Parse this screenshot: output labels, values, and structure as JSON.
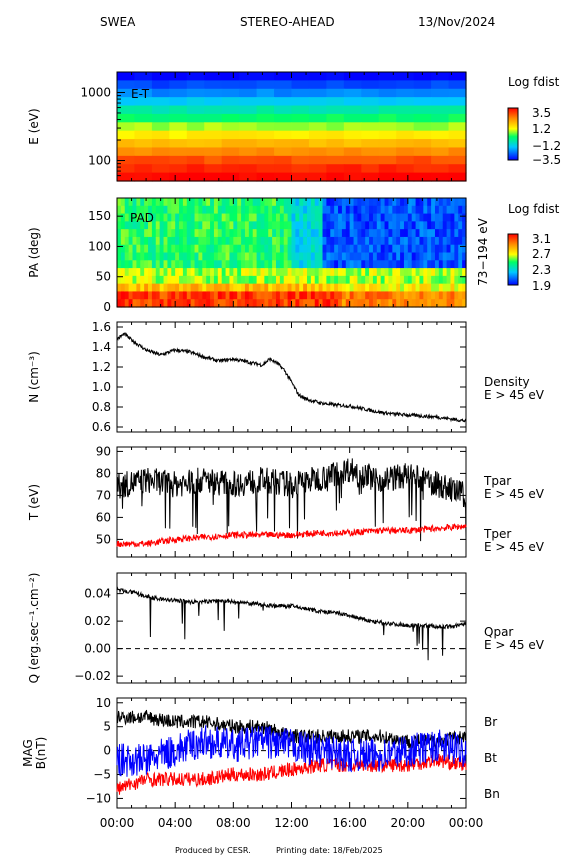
{
  "header": {
    "instrument": "SWEA",
    "spacecraft": "STEREO-AHEAD",
    "date": "13/Nov/2024"
  },
  "footer": {
    "produced": "Produced by CESR.",
    "printing": "Printing date: 18/Feb/2025"
  },
  "colors": {
    "black": "#000000",
    "red": "#ff0000",
    "blue": "#0000ff"
  },
  "chart_data": [
    {
      "type": "heatmap",
      "panel": "et",
      "tag": "E-T",
      "ylabel": "E (eV)",
      "yscale": "log",
      "ylim": [
        50,
        2000
      ],
      "yticks": [
        "1000",
        "100"
      ],
      "colorbar_title": "Log fdist",
      "colorbar_ticks": [
        "3.5",
        "1.2",
        "−1.2",
        "−3.5"
      ],
      "colorbar_range": [
        -3.5,
        3.5
      ],
      "energy_bins": [
        1900,
        1400,
        1050,
        780,
        580,
        430,
        320,
        240,
        180,
        135,
        100,
        75,
        57
      ],
      "log_fdist": [
        -3.5,
        -2.9,
        -2.3,
        -1.7,
        -1.0,
        -0.4,
        0.3,
        0.9,
        1.5,
        2.1,
        2.7,
        3.1,
        3.5
      ]
    },
    {
      "type": "heatmap",
      "panel": "pad",
      "tag": "PAD",
      "ylabel": "PA (deg)",
      "ylim": [
        0,
        180
      ],
      "yticks": [
        "150",
        "100",
        "50",
        "0"
      ],
      "right_label": "73−194 eV",
      "colorbar_title": "Log fdist",
      "colorbar_ticks": [
        "3.1",
        "2.7",
        "2.3",
        "1.9"
      ],
      "colorbar_range": [
        1.9,
        3.1
      ],
      "note": "field-aligned (0-40 deg) enhancement persisting all day; 100-180 deg band drops after ~12:00"
    },
    {
      "type": "line",
      "panel": "density",
      "ylabel": "N (cm⁻³)",
      "ylim": [
        0.55,
        1.65
      ],
      "yticks": [
        "1.6",
        "1.4",
        "1.2",
        "1.0",
        "0.8",
        "0.6"
      ],
      "series": [
        {
          "name": "Density",
          "sub": "E > 45 eV",
          "color": "#000000",
          "x": [
            0,
            0.5,
            1,
            2,
            3,
            4,
            5,
            6,
            7,
            8,
            9,
            10,
            10.5,
            11,
            11.5,
            12,
            12.5,
            13,
            14,
            15,
            16,
            17,
            18,
            19,
            20,
            21,
            22,
            23,
            24
          ],
          "y": [
            1.48,
            1.53,
            1.47,
            1.37,
            1.32,
            1.37,
            1.35,
            1.3,
            1.26,
            1.28,
            1.25,
            1.22,
            1.28,
            1.24,
            1.17,
            1.05,
            0.92,
            0.88,
            0.84,
            0.82,
            0.81,
            0.78,
            0.75,
            0.73,
            0.72,
            0.71,
            0.7,
            0.68,
            0.66
          ]
        }
      ]
    },
    {
      "type": "line",
      "panel": "temperature",
      "ylabel": "T (eV)",
      "ylim": [
        42,
        92
      ],
      "yticks": [
        "90",
        "80",
        "70",
        "60",
        "50"
      ],
      "series": [
        {
          "name": "Tpar",
          "sub": "E > 45 eV",
          "color": "#000000",
          "x": [
            0,
            2,
            4,
            6,
            8,
            10,
            12,
            14,
            16,
            18,
            20,
            22,
            24
          ],
          "y": [
            74,
            77,
            75,
            77,
            75,
            77,
            75,
            78,
            82,
            77,
            79,
            75,
            70
          ]
        },
        {
          "name": "Tper",
          "sub": "E > 45 eV",
          "color": "#ff0000",
          "x": [
            0,
            2,
            4,
            6,
            8,
            10,
            12,
            14,
            16,
            18,
            20,
            22,
            24
          ],
          "y": [
            48,
            48,
            50,
            51,
            52,
            52,
            52,
            53,
            53,
            54,
            54,
            55,
            56
          ]
        }
      ]
    },
    {
      "type": "line",
      "panel": "heatflux",
      "ylabel": "Q (erg.sec⁻¹.cm⁻²)",
      "ylim": [
        -0.025,
        0.055
      ],
      "yticks": [
        "0.04",
        "0.02",
        "0.00",
        "−0.02"
      ],
      "zero_line": "dashed",
      "series": [
        {
          "name": "Qpar",
          "sub": "E > 45 eV",
          "color": "#000000",
          "x": [
            0,
            1,
            2,
            3,
            4,
            5,
            6,
            7,
            8,
            9,
            10,
            11,
            12,
            13,
            14,
            15,
            16,
            17,
            18,
            19,
            20,
            21,
            22,
            23,
            24
          ],
          "y": [
            0.043,
            0.041,
            0.038,
            0.036,
            0.035,
            0.034,
            0.034,
            0.035,
            0.034,
            0.033,
            0.032,
            0.031,
            0.031,
            0.029,
            0.027,
            0.026,
            0.024,
            0.021,
            0.019,
            0.018,
            0.017,
            0.017,
            0.016,
            0.016,
            0.018
          ]
        }
      ]
    },
    {
      "type": "line",
      "panel": "mag",
      "ylabel": "MAG B(nT)",
      "ylabel_lines": [
        "MAG",
        "B(nT)"
      ],
      "ylim": [
        -12,
        11
      ],
      "yticks": [
        "10",
        "5",
        "0",
        "−5",
        "−10"
      ],
      "xticks": [
        "00:00",
        "04:00",
        "08:00",
        "12:00",
        "16:00",
        "20:00",
        "00:00"
      ],
      "xlim": [
        0,
        24
      ],
      "series": [
        {
          "name": "Br",
          "color": "#000000",
          "x": [
            0,
            2,
            4,
            6,
            8,
            10,
            12,
            14,
            16,
            18,
            20,
            22,
            24
          ],
          "y": [
            7,
            7,
            6,
            6,
            5,
            5,
            3,
            3,
            3,
            3,
            2,
            2,
            3
          ]
        },
        {
          "name": "Bt",
          "color": "#ff0000",
          "x": [
            0,
            2,
            4,
            6,
            8,
            10,
            12,
            14,
            16,
            18,
            20,
            22,
            24
          ],
          "y": [
            -8,
            -6,
            -6,
            -6,
            -5,
            -5,
            -4,
            -3,
            -3,
            -3,
            -3,
            -2,
            -3
          ]
        },
        {
          "name": "Bn",
          "color": "#0000ff",
          "x": [
            0,
            2,
            4,
            6,
            8,
            10,
            12,
            14,
            16,
            18,
            20,
            22,
            24
          ],
          "y": [
            -2,
            -2,
            0,
            2,
            1,
            2,
            1,
            0,
            -1,
            -1,
            0,
            1,
            0
          ]
        }
      ]
    }
  ]
}
